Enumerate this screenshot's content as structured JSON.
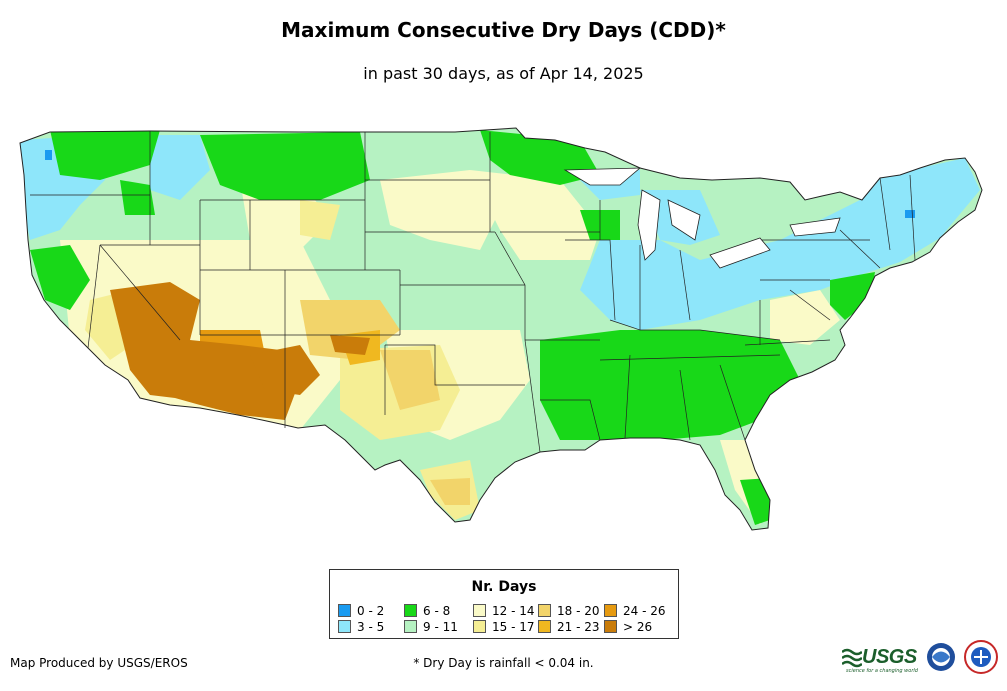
{
  "title": "Maximum Consecutive Dry Days (CDD)*",
  "subtitle": "in past 30 days, as of Apr 14, 2025",
  "legend": {
    "title": "Nr. Days",
    "items": [
      {
        "label": "0 - 2",
        "color": "#1a9bf0"
      },
      {
        "label": "3 - 5",
        "color": "#8ee6fa"
      },
      {
        "label": "6 - 8",
        "color": "#18d818"
      },
      {
        "label": "9 - 11",
        "color": "#b6f2c2"
      },
      {
        "label": "12 - 14",
        "color": "#fafac8"
      },
      {
        "label": "15 - 17",
        "color": "#f5ee94"
      },
      {
        "label": "18 - 20",
        "color": "#f2d46a"
      },
      {
        "label": "21 - 23",
        "color": "#f0b820"
      },
      {
        "label": "24 - 26",
        "color": "#e69a10"
      },
      {
        "label": "> 26",
        "color": "#c97c0a"
      }
    ]
  },
  "credit": "Map Produced by USGS/EROS",
  "footnote": "* Dry Day is rainfall < 0.04 in.",
  "logos": {
    "usgs": "USGS",
    "usgs_tagline": "science for a changing world"
  }
}
